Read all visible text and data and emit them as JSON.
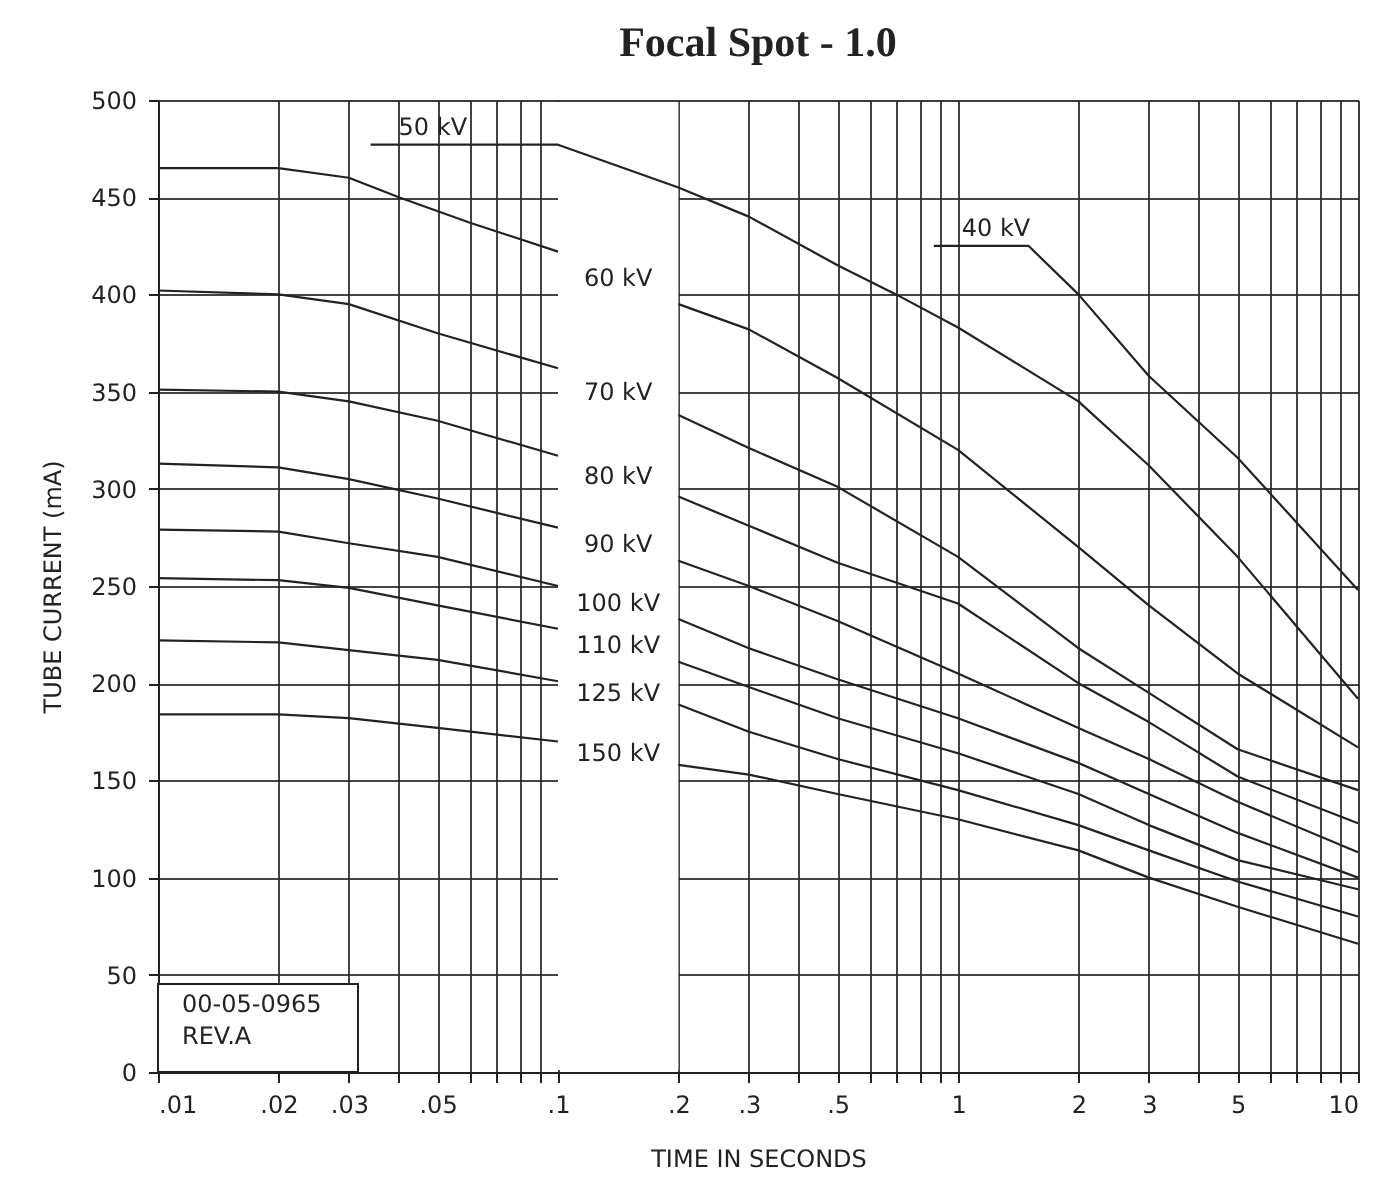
{
  "chart_data": {
    "type": "line",
    "title": "Focal Spot - 1.0",
    "xlabel": "TIME IN SECONDS",
    "ylabel": "TUBE CURRENT (mA)",
    "log": "x",
    "xlim": [
      0.01,
      10
    ],
    "ylim": [
      0,
      500
    ],
    "xticks": [
      {
        "value": 0.01,
        "label": ".01"
      },
      {
        "value": 0.02,
        "label": ".02"
      },
      {
        "value": 0.03,
        "label": ".03"
      },
      {
        "value": 0.04,
        "label": null
      },
      {
        "value": 0.05,
        "label": ".05"
      },
      {
        "value": 0.06,
        "label": null
      },
      {
        "value": 0.07,
        "label": null
      },
      {
        "value": 0.08,
        "label": null
      },
      {
        "value": 0.09,
        "label": null
      },
      {
        "value": 0.1,
        "label": ".1"
      },
      {
        "value": 0.2,
        "label": ".2"
      },
      {
        "value": 0.3,
        "label": ".3"
      },
      {
        "value": 0.4,
        "label": null
      },
      {
        "value": 0.5,
        "label": ".5"
      },
      {
        "value": 0.6,
        "label": null
      },
      {
        "value": 0.7,
        "label": null
      },
      {
        "value": 0.8,
        "label": null
      },
      {
        "value": 0.9,
        "label": null
      },
      1,
      2,
      3,
      {
        "value": 4,
        "label": null
      },
      5,
      {
        "value": 6,
        "label": null
      },
      {
        "value": 7,
        "label": null
      },
      {
        "value": 8,
        "label": null
      },
      {
        "value": 9,
        "label": null
      },
      10
    ],
    "yticks": [
      0,
      50,
      100,
      150,
      200,
      250,
      300,
      350,
      400,
      450,
      500
    ],
    "grid": true,
    "legend": false,
    "marker": "none",
    "line_style": "solid",
    "annotations": [
      "00-05-0965",
      "REV.A"
    ],
    "series": [
      {
        "name": "40 kV",
        "color": "#222222",
        "x": [
          0.87,
          1.5,
          2,
          3,
          5,
          10
        ],
        "values": [
          425,
          425,
          400,
          358,
          316,
          248
        ]
      },
      {
        "name": "50 kV",
        "color": "#222222",
        "x": [
          0.034,
          0.1,
          0.2,
          0.3,
          0.5,
          0.7,
          1,
          2,
          3,
          5,
          10
        ],
        "values": [
          477,
          477,
          455,
          440,
          415,
          400,
          383,
          345,
          312,
          265,
          192
        ]
      },
      {
        "name": "60 kV",
        "color": "#222222",
        "x": [
          0.01,
          0.02,
          0.03,
          0.04,
          0.06,
          0.1,
          0.14,
          0.2,
          0.3,
          0.5,
          1,
          2,
          3,
          5,
          10
        ],
        "values": [
          465,
          465,
          460,
          450,
          437,
          422,
          null,
          395,
          382,
          357,
          320,
          270,
          240,
          205,
          167
        ]
      },
      {
        "name": "70 kV",
        "color": "#222222",
        "x": [
          0.01,
          0.02,
          0.03,
          0.05,
          0.1,
          0.14,
          0.2,
          0.3,
          0.5,
          1,
          2,
          3,
          5,
          10
        ],
        "values": [
          402,
          400,
          395,
          380,
          362,
          null,
          338,
          321,
          301,
          265,
          218,
          195,
          166,
          145
        ]
      },
      {
        "name": "80 kV",
        "color": "#222222",
        "x": [
          0.01,
          0.02,
          0.03,
          0.05,
          0.1,
          0.14,
          0.2,
          0.3,
          0.5,
          1,
          2,
          3,
          5,
          10
        ],
        "values": [
          351,
          350,
          345,
          335,
          317,
          null,
          296,
          281,
          262,
          241,
          200,
          180,
          152,
          128
        ]
      },
      {
        "name": "90 kV",
        "color": "#222222",
        "x": [
          0.01,
          0.02,
          0.03,
          0.05,
          0.1,
          0.14,
          0.2,
          0.3,
          0.5,
          1,
          2,
          3,
          5,
          10
        ],
        "values": [
          313,
          311,
          305,
          295,
          280,
          null,
          263,
          250,
          232,
          205,
          177,
          161,
          139,
          113
        ]
      },
      {
        "name": "100 kV",
        "color": "#222222",
        "x": [
          0.01,
          0.02,
          0.03,
          0.05,
          0.1,
          0.14,
          0.2,
          0.3,
          0.5,
          1,
          2,
          3,
          5,
          10
        ],
        "values": [
          279,
          278,
          272,
          265,
          250,
          null,
          233,
          218,
          202,
          182,
          159,
          143,
          123,
          100
        ]
      },
      {
        "name": "110 kV",
        "color": "#222222",
        "x": [
          0.01,
          0.02,
          0.03,
          0.05,
          0.1,
          0.14,
          0.2,
          0.3,
          0.5,
          1,
          2,
          3,
          5,
          10
        ],
        "values": [
          254,
          253,
          249,
          240,
          228,
          null,
          211,
          198,
          182,
          164,
          143,
          127,
          109,
          94
        ]
      },
      {
        "name": "125 kV",
        "color": "#222222",
        "x": [
          0.01,
          0.02,
          0.03,
          0.05,
          0.1,
          0.14,
          0.2,
          0.3,
          0.5,
          1,
          2,
          3,
          5,
          10
        ],
        "values": [
          222,
          221,
          217,
          212,
          201,
          null,
          189,
          175,
          161,
          145,
          127,
          114,
          98,
          80
        ]
      },
      {
        "name": "150 kV",
        "color": "#222222",
        "x": [
          0.01,
          0.02,
          0.03,
          0.05,
          0.1,
          0.14,
          0.2,
          0.3,
          0.5,
          1,
          2,
          3,
          5,
          10
        ],
        "values": [
          184,
          184,
          182,
          177,
          170,
          null,
          158,
          153,
          143,
          130,
          114,
          100,
          85,
          66
        ]
      }
    ]
  }
}
